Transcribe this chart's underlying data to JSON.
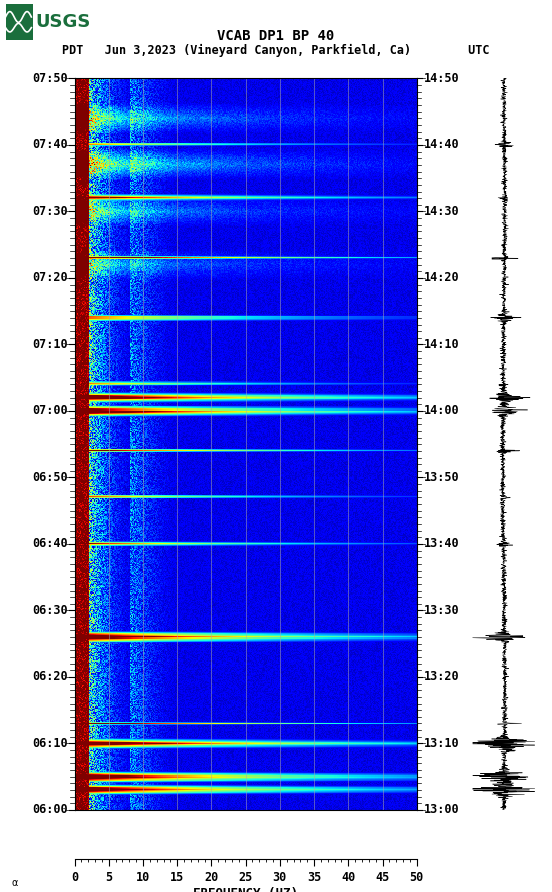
{
  "title_line1": "VCAB DP1 BP 40",
  "title_line2": "PDT   Jun 3,2023 (Vineyard Canyon, Parkfield, Ca)        UTC",
  "xlabel": "FREQUENCY (HZ)",
  "freq_min": 0,
  "freq_max": 50,
  "freq_ticks": [
    0,
    5,
    10,
    15,
    20,
    25,
    30,
    35,
    40,
    45,
    50
  ],
  "time_start_pdt": "06:00",
  "time_end_pdt": "07:50",
  "time_start_utc": "13:00",
  "time_end_utc": "14:50",
  "left_time_labels": [
    "06:00",
    "06:10",
    "06:20",
    "06:30",
    "06:40",
    "06:50",
    "07:00",
    "07:10",
    "07:20",
    "07:30",
    "07:40",
    "07:50"
  ],
  "right_time_labels": [
    "13:00",
    "13:10",
    "13:20",
    "13:30",
    "13:40",
    "13:50",
    "14:00",
    "14:10",
    "14:20",
    "14:30",
    "14:40",
    "14:50"
  ],
  "grid_freq_lines": [
    5,
    10,
    15,
    20,
    25,
    30,
    35,
    40,
    45
  ],
  "colormap": "jet",
  "fig_width": 5.52,
  "fig_height": 8.92,
  "usgs_logo_color": "#1a6e3c",
  "title_fontsize": 10,
  "label_fontsize": 9,
  "tick_fontsize": 8.5,
  "event_times_min": [
    10,
    18,
    27,
    36,
    46,
    48,
    50,
    56,
    63,
    70,
    84,
    97,
    100,
    105,
    107
  ],
  "major_events_min": [
    48,
    50,
    84,
    100,
    105,
    107
  ]
}
